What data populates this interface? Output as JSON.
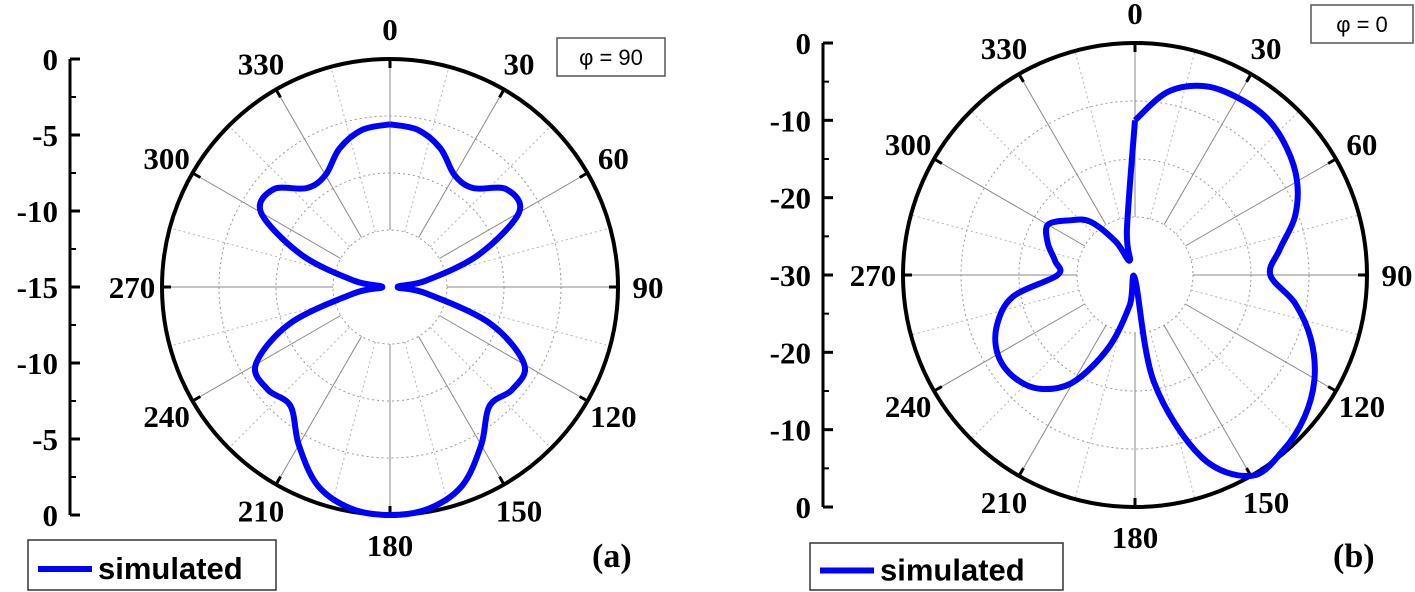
{
  "chart_data": [
    {
      "type": "polar-line",
      "panel_label": "(a)",
      "annotation": "φ = 90",
      "legend": [
        "simulated"
      ],
      "angular_ticks": [
        "0",
        "30",
        "60",
        "90",
        "120",
        "150",
        "180",
        "210",
        "240",
        "270",
        "300",
        "330"
      ],
      "radial_ticks": [
        "0",
        "-5",
        "-10",
        "-15",
        "-10",
        "-5",
        "0"
      ],
      "radial_range_db": [
        -15,
        0
      ],
      "grid": true,
      "series": [
        {
          "color": "#0000ff",
          "theta_deg": [
            0,
            10,
            20,
            30,
            40,
            50,
            60,
            70,
            80,
            90,
            100,
            110,
            120,
            130,
            140,
            150,
            160,
            170,
            180,
            190,
            200,
            210,
            220,
            230,
            240,
            250,
            260,
            270,
            280,
            290,
            300,
            310,
            320,
            330,
            340,
            350,
            360
          ],
          "gain_db": [
            -4.3,
            -4.5,
            -5.3,
            -6.5,
            -6.5,
            -5.0,
            -5.2,
            -8.8,
            -12.6,
            -14.5,
            -12.6,
            -8.0,
            -4.8,
            -4.5,
            -4.8,
            -3.0,
            -1.1,
            -0.2,
            0.0,
            -0.2,
            -1.1,
            -3.0,
            -4.8,
            -4.5,
            -4.8,
            -8.0,
            -12.6,
            -14.5,
            -12.6,
            -8.8,
            -5.2,
            -5.0,
            -6.5,
            -6.5,
            -5.3,
            -4.5,
            -4.3
          ]
        }
      ]
    },
    {
      "type": "polar-line",
      "panel_label": "(b)",
      "annotation": "φ = 0",
      "legend": [
        "simulated"
      ],
      "angular_ticks": [
        "0",
        "30",
        "60",
        "90",
        "120",
        "150",
        "180",
        "210",
        "240",
        "270",
        "300",
        "330"
      ],
      "radial_ticks": [
        "0",
        "-10",
        "-20",
        "-30",
        "-20",
        "-10",
        "0"
      ],
      "radial_range_db": [
        -30,
        0
      ],
      "grid": true,
      "series": [
        {
          "color": "#0000ff",
          "theta_deg": [
            0,
            10,
            20,
            30,
            40,
            50,
            60,
            70,
            80,
            90,
            100,
            110,
            120,
            130,
            140,
            150,
            160,
            170,
            180,
            190,
            200,
            210,
            220,
            230,
            240,
            250,
            260,
            270,
            280,
            290,
            300,
            310,
            320,
            330,
            340,
            350,
            360
          ],
          "gain_db": [
            -10.0,
            -6.0,
            -4.0,
            -3.5,
            -3.5,
            -4.4,
            -5.8,
            -8.0,
            -11.0,
            -12.5,
            -9.0,
            -5.8,
            -3.2,
            -1.4,
            -0.3,
            0.0,
            -5.0,
            -16.0,
            -29.5,
            -26.0,
            -20.0,
            -14.0,
            -10.8,
            -9.5,
            -9.5,
            -11.0,
            -14.0,
            -20.0,
            -19.5,
            -18.0,
            -17.0,
            -19.0,
            -21.0,
            -25.0,
            -28.0,
            -24.0,
            -10.0
          ]
        }
      ]
    }
  ]
}
